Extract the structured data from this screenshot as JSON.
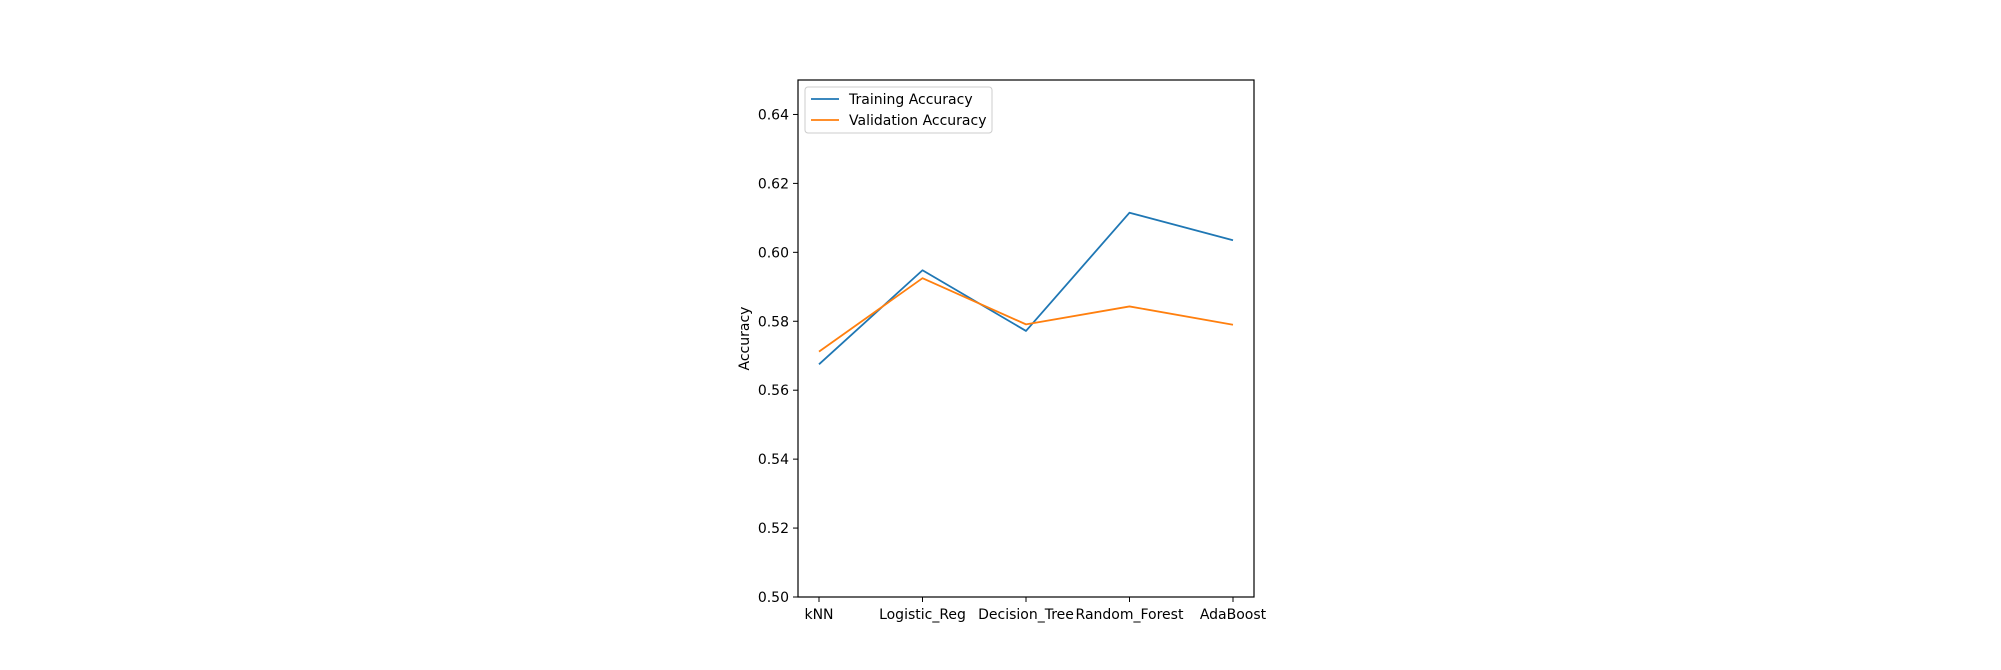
{
  "chart_data": {
    "type": "line",
    "categories": [
      "kNN",
      "Logistic_Reg",
      "Decision_Tree",
      "Random_Forest",
      "AdaBoost"
    ],
    "series": [
      {
        "name": "Training Accuracy",
        "color": "#1f77b4",
        "values": [
          0.5675,
          0.5948,
          0.5772,
          0.6115,
          0.6035
        ]
      },
      {
        "name": "Validation Accuracy",
        "color": "#ff7f0e",
        "values": [
          0.5712,
          0.5925,
          0.5791,
          0.5843,
          0.579
        ]
      }
    ],
    "ylabel": "Accuracy",
    "ylim": [
      0.5,
      0.65
    ],
    "yticks": [
      "0.50",
      "0.52",
      "0.54",
      "0.56",
      "0.58",
      "0.60",
      "0.62",
      "0.64"
    ],
    "grid": false,
    "legend_position": "upper-left"
  }
}
